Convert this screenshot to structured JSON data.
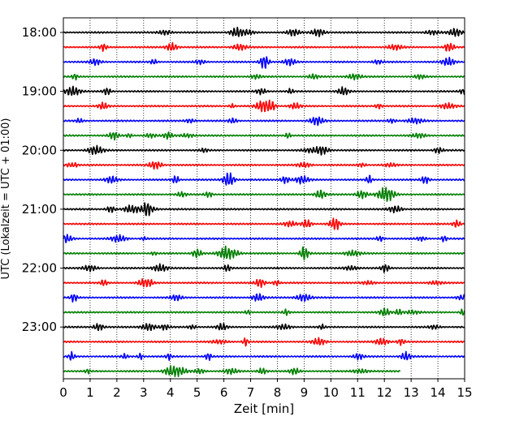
{
  "chart_data": {
    "type": "line",
    "title": "",
    "xlabel": "Zeit  [min]",
    "ylabel": "UTC (Lokalzeit = UTC + 01:00)",
    "xlim": [
      0,
      15
    ],
    "x_ticks": [
      "0",
      "1",
      "2",
      "3",
      "4",
      "5",
      "6",
      "7",
      "8",
      "9",
      "10",
      "11",
      "12",
      "13",
      "14",
      "15"
    ],
    "y_ticks": [
      "18:00",
      "19:00",
      "20:00",
      "21:00",
      "22:00",
      "23:00"
    ],
    "grid": "vertical dotted lines at each minute",
    "legend": "none",
    "trace_interval_min": 15,
    "trace_colors": [
      "#000000",
      "#ff0000",
      "#0000ff",
      "#007f00"
    ],
    "series": [
      {
        "start": "18:00",
        "end_min": 15
      },
      {
        "start": "18:15",
        "end_min": 15
      },
      {
        "start": "18:30",
        "end_min": 15
      },
      {
        "start": "18:45",
        "end_min": 15
      },
      {
        "start": "19:00",
        "end_min": 15
      },
      {
        "start": "19:15",
        "end_min": 15
      },
      {
        "start": "19:30",
        "end_min": 15
      },
      {
        "start": "19:45",
        "end_min": 15
      },
      {
        "start": "20:00",
        "end_min": 15
      },
      {
        "start": "20:15",
        "end_min": 15
      },
      {
        "start": "20:30",
        "end_min": 15
      },
      {
        "start": "20:45",
        "end_min": 15
      },
      {
        "start": "21:00",
        "end_min": 15
      },
      {
        "start": "21:15",
        "end_min": 15
      },
      {
        "start": "21:30",
        "end_min": 15
      },
      {
        "start": "21:45",
        "end_min": 15
      },
      {
        "start": "22:00",
        "end_min": 15
      },
      {
        "start": "22:15",
        "end_min": 15
      },
      {
        "start": "22:30",
        "end_min": 15
      },
      {
        "start": "22:45",
        "end_min": 15
      },
      {
        "start": "23:00",
        "end_min": 15
      },
      {
        "start": "23:15",
        "end_min": 15
      },
      {
        "start": "23:30",
        "end_min": 15
      },
      {
        "start": "23:45",
        "end_min": 12.6
      }
    ]
  }
}
